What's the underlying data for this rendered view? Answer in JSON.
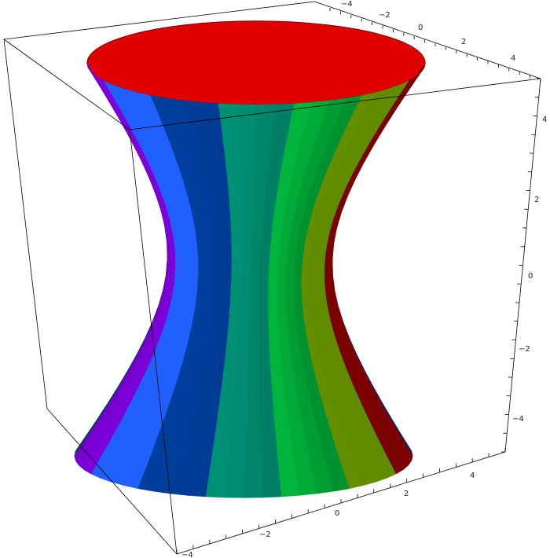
{
  "chart_data": {
    "type": "surface3d",
    "shape": "hyperboloid of one sheet, colored in angular bands",
    "title": "",
    "axes": {
      "top_axis": {
        "ticks": [
          -4,
          -2,
          0,
          2,
          4
        ],
        "range": [
          -5,
          5
        ]
      },
      "bottom_axis": {
        "ticks": [
          -4,
          -2,
          0,
          2,
          4
        ],
        "range": [
          -5,
          5
        ]
      },
      "vertical_axis": {
        "ticks": [
          4,
          2,
          0,
          -2,
          -4
        ],
        "range": [
          -5,
          5
        ]
      }
    },
    "band_colors": [
      "#e00000",
      "#b0ff00",
      "#00f050",
      "#00a080",
      "#0040a0",
      "#2060ff",
      "#8000e0",
      "#c000a0",
      "#ff0060",
      "#e00000",
      "#a0ff00",
      "#00ff40",
      "#005080",
      "#900040"
    ],
    "box": true,
    "grid": false
  }
}
